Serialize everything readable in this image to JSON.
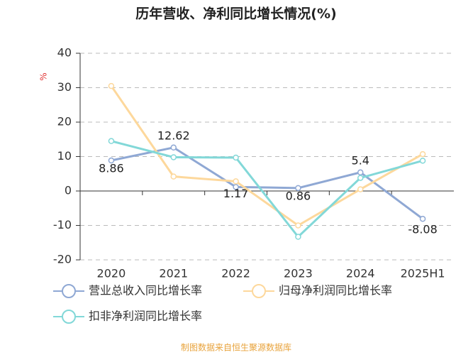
{
  "chart_data": {
    "type": "line",
    "title": "历年营收、净利同比增长情况(%)",
    "y_label": "%",
    "categories": [
      "2020",
      "2021",
      "2022",
      "2023",
      "2024",
      "2025H1"
    ],
    "series": [
      {
        "name": "营业总收入同比增长率",
        "color": "#8fa8d4",
        "values": [
          8.86,
          12.62,
          1.17,
          0.86,
          5.4,
          -8.08
        ],
        "show_labels": true
      },
      {
        "name": "归母净利润同比增长率",
        "color": "#fdd89c",
        "values": [
          30.5,
          4.2,
          2.8,
          -10,
          0.5,
          10.7
        ],
        "show_labels": false
      },
      {
        "name": "扣非净利润同比增长率",
        "color": "#82d8d8",
        "values": [
          14.5,
          9.8,
          9.7,
          -13.3,
          3.8,
          8.8
        ],
        "show_labels": false
      }
    ],
    "ylim": [
      -20,
      40
    ],
    "yticks": [
      -20,
      -10,
      0,
      10,
      20,
      30,
      40
    ],
    "grid": true,
    "source": "制图数据来自恒生聚源数据库"
  }
}
